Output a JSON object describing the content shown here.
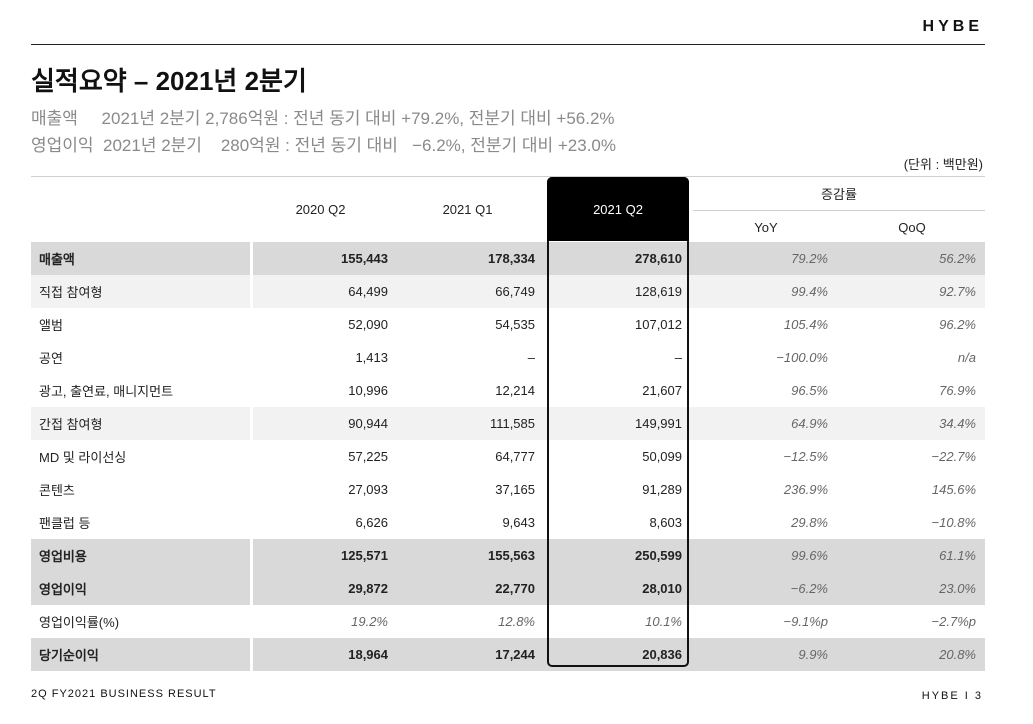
{
  "header": {
    "logo": "HYBE"
  },
  "title": "실적요약 – 2021년 2분기",
  "summary": [
    "매출액     2021년 2분기 2,786억원 : 전년 동기 대비 +79.2%, 전분기 대비 +56.2%",
    "영업이익  2021년 2분기    280억원 : 전년 동기 대비   −6.2%, 전분기 대비 +23.0%"
  ],
  "unit": "(단위 : 백만원)",
  "table": {
    "columns": [
      "2020 Q2",
      "2021 Q1",
      "2021 Q2"
    ],
    "change_group": "증감률",
    "change_columns": [
      "YoY",
      "QoQ"
    ],
    "rows": [
      {
        "label": "매출액",
        "v1": "155,443",
        "v2": "178,334",
        "v3": "278,610",
        "yoy": "79.2%",
        "qoq": "56.2%",
        "style": "dark",
        "bold": true
      },
      {
        "label": "직접 참여형",
        "v1": "64,499",
        "v2": "66,749",
        "v3": "128,619",
        "yoy": "99.4%",
        "qoq": "92.7%",
        "style": "light"
      },
      {
        "label": "앨범",
        "v1": "52,090",
        "v2": "54,535",
        "v3": "107,012",
        "yoy": "105.4%",
        "qoq": "96.2%",
        "style": "none"
      },
      {
        "label": "공연",
        "v1": "1,413",
        "v2": "–",
        "v3": "–",
        "yoy": "−100.0%",
        "qoq": "n/a",
        "style": "none"
      },
      {
        "label": "광고, 출연료, 매니지먼트",
        "v1": "10,996",
        "v2": "12,214",
        "v3": "21,607",
        "yoy": "96.5%",
        "qoq": "76.9%",
        "style": "none"
      },
      {
        "label": "간접 참여형",
        "v1": "90,944",
        "v2": "111,585",
        "v3": "149,991",
        "yoy": "64.9%",
        "qoq": "34.4%",
        "style": "light"
      },
      {
        "label": "MD 및 라이선싱",
        "v1": "57,225",
        "v2": "64,777",
        "v3": "50,099",
        "yoy": "−12.5%",
        "qoq": "−22.7%",
        "style": "none"
      },
      {
        "label": "콘텐츠",
        "v1": "27,093",
        "v2": "37,165",
        "v3": "91,289",
        "yoy": "236.9%",
        "qoq": "145.6%",
        "style": "none"
      },
      {
        "label": "팬클럽 등",
        "v1": "6,626",
        "v2": "9,643",
        "v3": "8,603",
        "yoy": "29.8%",
        "qoq": "−10.8%",
        "style": "none"
      },
      {
        "label": "영업비용",
        "v1": "125,571",
        "v2": "155,563",
        "v3": "250,599",
        "yoy": "99.6%",
        "qoq": "61.1%",
        "style": "dark",
        "bold": true
      },
      {
        "label": "영업이익",
        "v1": "29,872",
        "v2": "22,770",
        "v3": "28,010",
        "yoy": "−6.2%",
        "qoq": "23.0%",
        "style": "dark",
        "bold": true
      },
      {
        "label": "영업이익률(%)",
        "v1": "19.2%",
        "v2": "12.8%",
        "v3": "10.1%",
        "yoy": "−9.1%p",
        "qoq": "−2.7%p",
        "style": "none",
        "italic_values": true
      },
      {
        "label": "당기순이익",
        "v1": "18,964",
        "v2": "17,244",
        "v3": "20,836",
        "yoy": "9.9%",
        "qoq": "20.8%",
        "style": "dark",
        "bold": true
      }
    ]
  },
  "colors": {
    "dark_row": "#d9d9d9",
    "light_row": "#f2f2f2",
    "highlight": "#000000"
  },
  "footer": {
    "left": "2Q FY2021 BUSINESS RESULT",
    "right": "HYBE  I  3"
  }
}
